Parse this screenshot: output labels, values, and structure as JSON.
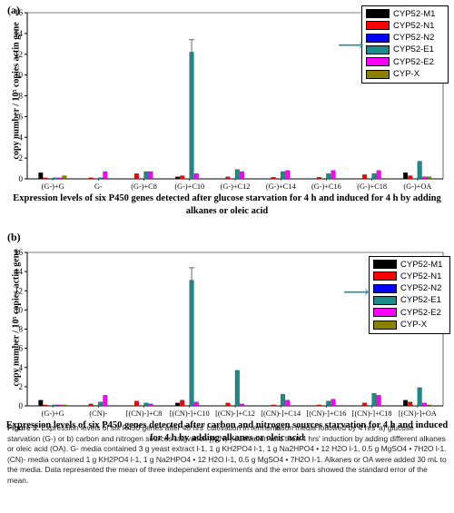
{
  "chart_data": [
    {
      "panel_label": "(a)",
      "type": "bar",
      "ylabel": "copy number / 10⁵ copies actin gene",
      "ylim": [
        0,
        16
      ],
      "yticks": [
        "0",
        "2",
        "4",
        "6",
        "8",
        "10",
        "12",
        "14",
        "16"
      ],
      "categories": [
        "(G-)+G",
        "G-",
        "(G-)+C8",
        "(G-)+C10",
        "(G-)+C12",
        "(G-)+C14",
        "(G-)+C16",
        "(G-)+C18",
        "(G-)+OA"
      ],
      "series": [
        {
          "name": "CYP52-M1",
          "color": "#000000",
          "values": [
            0.6,
            0.0,
            0.0,
            0.2,
            0.0,
            0.0,
            0.0,
            0.0,
            0.6
          ]
        },
        {
          "name": "CYP52-N1",
          "color": "#ff0000",
          "values": [
            0.1,
            0.1,
            0.5,
            0.3,
            0.2,
            0.15,
            0.15,
            0.4,
            0.3
          ]
        },
        {
          "name": "CYP52-N2",
          "color": "#0000ff",
          "values": [
            0.0,
            0.0,
            0.0,
            0.0,
            0.0,
            0.0,
            0.0,
            0.0,
            0.0
          ]
        },
        {
          "name": "CYP52-E1",
          "color": "#1a8a8a",
          "values": [
            0.1,
            0.1,
            0.7,
            12.2,
            0.9,
            0.7,
            0.5,
            0.5,
            1.7
          ]
        },
        {
          "name": "CYP52-E2",
          "color": "#ff00ff",
          "values": [
            0.1,
            0.7,
            0.7,
            0.5,
            0.7,
            0.8,
            0.8,
            0.8,
            0.2
          ]
        },
        {
          "name": "CYP-X",
          "color": "#8b8000",
          "values": [
            0.3,
            0.0,
            0.0,
            0.0,
            0.0,
            0.0,
            0.0,
            0.0,
            0.2
          ]
        }
      ],
      "error_bar": {
        "series": "CYP52-E1",
        "category": "(G-)+C10",
        "value": 1.2
      },
      "caption": "Expression levels of six P450 genes detected after glucose starvation for 4 h and induced for 4 h by adding alkanes or oleic acid"
    },
    {
      "panel_label": "(b)",
      "type": "bar",
      "ylabel": "copy number / 10⁵ copies actin gene",
      "ylim": [
        0,
        16
      ],
      "yticks": [
        "0",
        "2",
        "4",
        "6",
        "8",
        "10",
        "12",
        "14",
        "16"
      ],
      "categories": [
        "(G-)+G",
        "(CN)-",
        "[(CN)-]+C8",
        "[(CN)-]+C10",
        "[(CN)-]+C12",
        "[(CN)-]+C14",
        "[(CN)-]+C16",
        "[(CN)-]+C18",
        "[(CN)-]+OA"
      ],
      "series": [
        {
          "name": "CYP52-M1",
          "color": "#000000",
          "values": [
            0.6,
            0.0,
            0.0,
            0.3,
            0.0,
            0.0,
            0.0,
            0.0,
            0.6
          ]
        },
        {
          "name": "CYP52-N1",
          "color": "#ff0000",
          "values": [
            0.1,
            0.2,
            0.5,
            0.6,
            0.3,
            0.1,
            0.1,
            0.3,
            0.4
          ]
        },
        {
          "name": "CYP52-N2",
          "color": "#0000ff",
          "values": [
            0.0,
            0.0,
            0.0,
            0.0,
            0.0,
            0.0,
            0.0,
            0.0,
            0.0
          ]
        },
        {
          "name": "CYP52-E1",
          "color": "#1a8a8a",
          "values": [
            0.1,
            0.4,
            0.3,
            13.1,
            3.7,
            1.2,
            0.5,
            1.3,
            1.9
          ]
        },
        {
          "name": "CYP52-E2",
          "color": "#ff00ff",
          "values": [
            0.1,
            1.1,
            0.2,
            0.4,
            0.2,
            0.6,
            0.7,
            1.1,
            0.3
          ]
        },
        {
          "name": "CYP-X",
          "color": "#8b8000",
          "values": [
            0.1,
            0.0,
            0.0,
            0.0,
            0.0,
            0.0,
            0.0,
            0.0,
            0.1
          ]
        }
      ],
      "error_bar": {
        "series": "CYP52-E1",
        "category": "[(CN)-]+C10",
        "value": 1.3
      },
      "caption": "Expression levels of six P450 genes detected after carbon and nitrogen sources starvation for 4 h and induced for 4 h by adding  alkanes or oleic acid"
    }
  ],
  "figure_caption": {
    "label": "Figure 3.",
    "text": " Expression levels of six P450 genes after 48 hrs' cultivation in fermentation media followed by 4 hrs' a) glucose starvation (G-) or b) carbon and nitrogen sources starvation [(CN)-] cultivation and then 4 hrs' induction by adding different alkanes or oleic acid (OA). G- media contained 3 g yeast extract l-1, 1 g KH2PO4 l-1, 1 g Na2HPO4 • 12 H2O l-1, 0.5 g MgSO4 • 7H2O l-1. (CN)- media contained 1 g KH2PO4 l-1, 1 g Na2HPO4 • 12 H2O l-1, 0.5 g MgSO4 • 7H2O l-1. Alkanes or OA were added 30 mL to the media. Data represented the mean of three independent experiments and the error bars showed the standard error of the mean."
  },
  "icons": {
    "arrow": "right-arrow-icon"
  }
}
